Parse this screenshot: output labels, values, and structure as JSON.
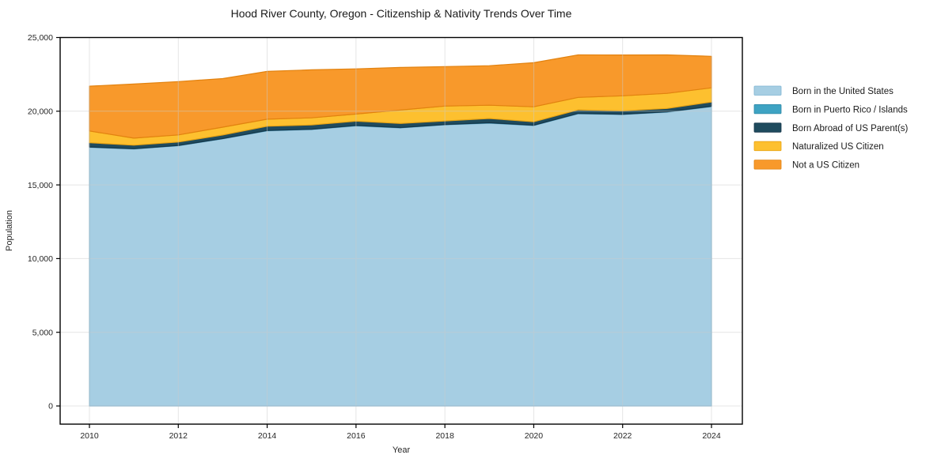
{
  "figure": {
    "background": "#ffffff",
    "spine_color": "#000000",
    "grid_color": "#cbcbcb"
  },
  "chart_data": {
    "type": "area",
    "stacked": true,
    "title": "Hood River County, Oregon - Citizenship & Nativity Trends Over Time",
    "xlabel": "Year",
    "ylabel": "Population",
    "x": [
      2010,
      2011,
      2012,
      2013,
      2014,
      2015,
      2016,
      2017,
      2018,
      2019,
      2020,
      2021,
      2022,
      2023,
      2024
    ],
    "x_ticks": [
      2010,
      2012,
      2014,
      2016,
      2018,
      2020,
      2022,
      2024
    ],
    "x_tick_labels": [
      "2010",
      "2012",
      "2014",
      "2016",
      "2018",
      "2020",
      "2022",
      "2024"
    ],
    "y_ticks": [
      0,
      5000,
      10000,
      15000,
      20000,
      25000
    ],
    "y_tick_labels": [
      "0",
      "5,000",
      "10,000",
      "15,000",
      "20,000",
      "25,000"
    ],
    "ylim": [
      0,
      25000
    ],
    "grid": true,
    "legend_position": "right",
    "series": [
      {
        "key": "born-in-us",
        "name": "Born in the United States",
        "color": "#A6CEE3",
        "edge": "#7EB4D2",
        "values": [
          17540,
          17430,
          17650,
          18120,
          18660,
          18750,
          19000,
          18860,
          19070,
          19180,
          19020,
          19820,
          19770,
          19930,
          20300
        ]
      },
      {
        "key": "born-pr-islands",
        "name": "Born in Puerto Rico / Islands",
        "color": "#3EA3C3",
        "edge": "#2E88A6",
        "values": [
          30,
          25,
          30,
          25,
          30,
          30,
          35,
          30,
          30,
          35,
          30,
          30,
          25,
          30,
          35
        ]
      },
      {
        "key": "born-abroad",
        "name": "Born Abroad of US Parent(s)",
        "color": "#1F4B5E",
        "edge": "#16374A",
        "values": [
          290,
          240,
          230,
          240,
          290,
          290,
          290,
          280,
          240,
          290,
          230,
          240,
          230,
          230,
          290
        ]
      },
      {
        "key": "naturalized",
        "name": "Naturalized US Citizen",
        "color": "#FDC02F",
        "edge": "#E8A414",
        "values": [
          800,
          480,
          480,
          530,
          480,
          480,
          480,
          910,
          1010,
          900,
          1020,
          850,
          1020,
          1020,
          960
        ]
      },
      {
        "key": "not-citizen",
        "name": "Not a US Citizen",
        "color": "#F8992B",
        "edge": "#E2820F",
        "values": [
          3040,
          3670,
          3620,
          3300,
          3240,
          3260,
          3070,
          2890,
          2680,
          2680,
          2990,
          2880,
          2770,
          2610,
          2140
        ]
      }
    ]
  }
}
